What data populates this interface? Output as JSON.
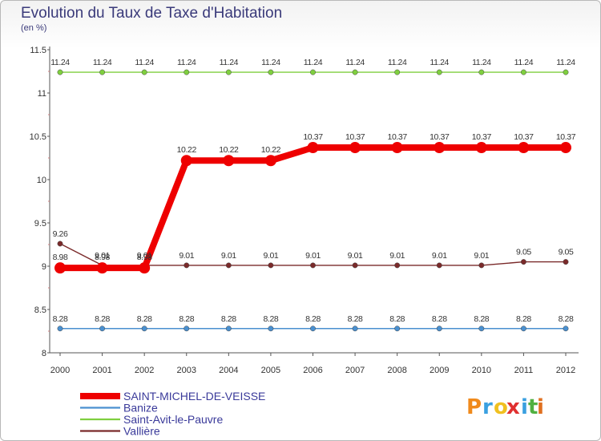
{
  "chart_data": {
    "type": "line",
    "title": "Evolution du Taux de Taxe d'Habitation",
    "subtitle": "(en %)",
    "xlabel": "",
    "ylabel": "(en %)",
    "ylim": [
      8,
      11.5
    ],
    "yticks": [
      "8",
      "8.5",
      "9",
      "9.5",
      "10",
      "10.5",
      "11",
      "11.5"
    ],
    "x": [
      "2000",
      "2001",
      "2002",
      "2003",
      "2004",
      "2005",
      "2006",
      "2007",
      "2008",
      "2009",
      "2010",
      "2011",
      "2012"
    ],
    "grid": false,
    "legend_position": "bottom-left",
    "series": [
      {
        "name": "Saint-Avit-le-Pauvre",
        "color": "#7fcf3f",
        "values": [
          11.24,
          11.24,
          11.24,
          11.24,
          11.24,
          11.24,
          11.24,
          11.24,
          11.24,
          11.24,
          11.24,
          11.24,
          11.24
        ],
        "labels": [
          "11.24",
          "11.24",
          "11.24",
          "11.24",
          "11.24",
          "11.24",
          "11.24",
          "11.24",
          "11.24",
          "11.24",
          "11.24",
          "11.24",
          "11.24"
        ]
      },
      {
        "name": "Banize",
        "color": "#4a90d0",
        "values": [
          8.28,
          8.28,
          8.28,
          8.28,
          8.28,
          8.28,
          8.28,
          8.28,
          8.28,
          8.28,
          8.28,
          8.28,
          8.28
        ],
        "labels": [
          "8.28",
          "8.28",
          "8.28",
          "8.28",
          "8.28",
          "8.28",
          "8.28",
          "8.28",
          "8.28",
          "8.28",
          "8.28",
          "8.28",
          "8.28"
        ]
      },
      {
        "name": "Vallière",
        "color": "#7a2a2a",
        "values": [
          9.26,
          9.01,
          9.01,
          9.01,
          9.01,
          9.01,
          9.01,
          9.01,
          9.01,
          9.01,
          9.01,
          9.05,
          9.05
        ],
        "labels": [
          "9.26",
          "9.01",
          "9.01",
          "9.01",
          "9.01",
          "9.01",
          "9.01",
          "9.01",
          "9.01",
          "9.01",
          "9.01",
          "9.05",
          "9.05"
        ]
      },
      {
        "name": "SAINT-MICHEL-DE-VEISSE",
        "color": "#ee0000",
        "values": [
          8.98,
          8.98,
          8.98,
          10.22,
          10.22,
          10.22,
          10.37,
          10.37,
          10.37,
          10.37,
          10.37,
          10.37,
          10.37
        ],
        "labels": [
          "8.98",
          "8.98",
          "8.98",
          "10.22",
          "10.22",
          "10.22",
          "10.37",
          "10.37",
          "10.37",
          "10.37",
          "10.37",
          "10.37",
          "10.37"
        ]
      }
    ],
    "legend": [
      "SAINT-MICHEL-DE-VEISSE",
      "Banize",
      "Saint-Avit-le-Pauvre",
      "Vallière"
    ]
  },
  "branding": {
    "letters": [
      "P",
      "r",
      "o",
      "x",
      "i",
      "t",
      "i"
    ],
    "colors": [
      "#f08a1c",
      "#3aa0e0",
      "#f0c020",
      "#e03030",
      "#3aa0e0",
      "#50b040",
      "#e07020"
    ]
  }
}
